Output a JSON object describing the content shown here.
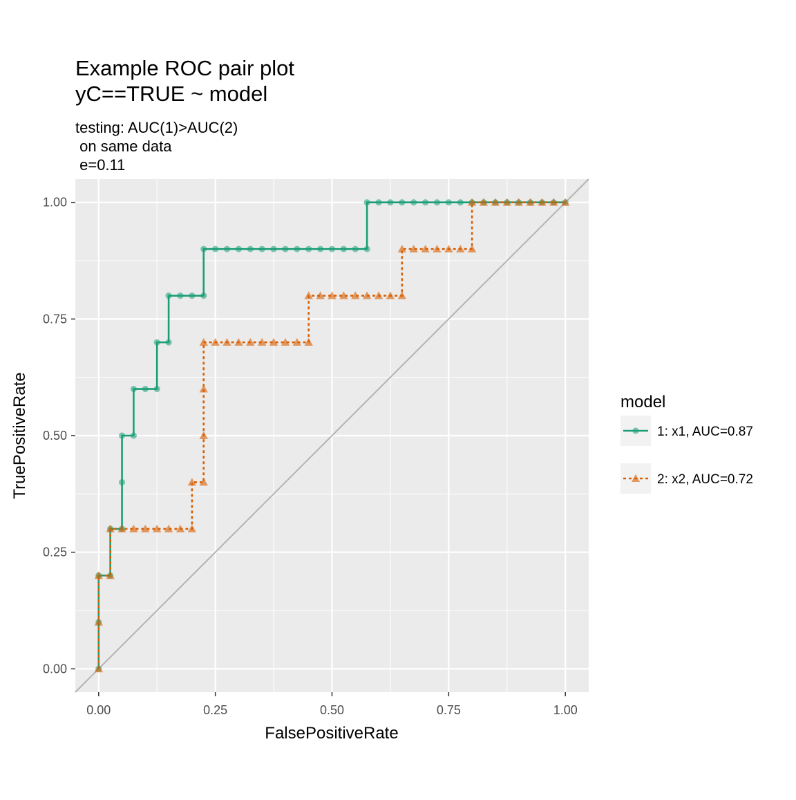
{
  "chart_data": {
    "type": "line",
    "title": [
      "Example ROC pair plot",
      "yC==TRUE ~ model"
    ],
    "subtitle": [
      "testing: AUC(1)>AUC(2)",
      " on same data",
      " e=0.11"
    ],
    "xlabel": "FalsePositiveRate",
    "ylabel": "TruePositiveRate",
    "xlim": [
      -0.05,
      1.05
    ],
    "ylim": [
      -0.05,
      1.05
    ],
    "xticks": [
      0,
      0.25,
      0.5,
      0.75,
      1
    ],
    "yticks": [
      0,
      0.25,
      0.5,
      0.75,
      1
    ],
    "xtick_labels": [
      "0.00",
      "0.25",
      "0.50",
      "0.75",
      "1.00"
    ],
    "ytick_labels": [
      "0.00",
      "0.25",
      "0.50",
      "0.75",
      "1.00"
    ],
    "grid": true,
    "legend": {
      "title": "model",
      "position": "right"
    },
    "reference_line": {
      "from": [
        -0.05,
        -0.05
      ],
      "to": [
        1.05,
        1.05
      ],
      "color": "#b3b3b3"
    },
    "series": [
      {
        "name": "1: x1, AUC=0.87",
        "color": "#1b9e77",
        "linestyle": "solid",
        "marker": "circle",
        "points": [
          [
            0,
            0
          ],
          [
            0,
            0.1
          ],
          [
            0,
            0.2
          ],
          [
            0.025,
            0.2
          ],
          [
            0.025,
            0.3
          ],
          [
            0.05,
            0.3
          ],
          [
            0.05,
            0.4
          ],
          [
            0.05,
            0.5
          ],
          [
            0.075,
            0.5
          ],
          [
            0.075,
            0.6
          ],
          [
            0.1,
            0.6
          ],
          [
            0.125,
            0.6
          ],
          [
            0.125,
            0.7
          ],
          [
            0.15,
            0.7
          ],
          [
            0.15,
            0.8
          ],
          [
            0.175,
            0.8
          ],
          [
            0.2,
            0.8
          ],
          [
            0.225,
            0.8
          ],
          [
            0.225,
            0.9
          ],
          [
            0.25,
            0.9
          ],
          [
            0.275,
            0.9
          ],
          [
            0.3,
            0.9
          ],
          [
            0.325,
            0.9
          ],
          [
            0.35,
            0.9
          ],
          [
            0.375,
            0.9
          ],
          [
            0.4,
            0.9
          ],
          [
            0.425,
            0.9
          ],
          [
            0.45,
            0.9
          ],
          [
            0.475,
            0.9
          ],
          [
            0.5,
            0.9
          ],
          [
            0.525,
            0.9
          ],
          [
            0.55,
            0.9
          ],
          [
            0.575,
            0.9
          ],
          [
            0.575,
            1
          ],
          [
            0.6,
            1
          ],
          [
            0.625,
            1
          ],
          [
            0.65,
            1
          ],
          [
            0.675,
            1
          ],
          [
            0.7,
            1
          ],
          [
            0.725,
            1
          ],
          [
            0.75,
            1
          ],
          [
            0.775,
            1
          ],
          [
            0.8,
            1
          ],
          [
            0.825,
            1
          ],
          [
            0.85,
            1
          ],
          [
            0.875,
            1
          ],
          [
            0.9,
            1
          ],
          [
            0.925,
            1
          ],
          [
            0.95,
            1
          ],
          [
            0.975,
            1
          ],
          [
            1,
            1
          ]
        ]
      },
      {
        "name": "2: x2, AUC=0.72",
        "color": "#d95f02",
        "linestyle": "dashed",
        "marker": "triangle",
        "points": [
          [
            0,
            0
          ],
          [
            0,
            0.1
          ],
          [
            0,
            0.2
          ],
          [
            0.025,
            0.2
          ],
          [
            0.025,
            0.3
          ],
          [
            0.05,
            0.3
          ],
          [
            0.075,
            0.3
          ],
          [
            0.1,
            0.3
          ],
          [
            0.125,
            0.3
          ],
          [
            0.15,
            0.3
          ],
          [
            0.175,
            0.3
          ],
          [
            0.2,
            0.3
          ],
          [
            0.2,
            0.4
          ],
          [
            0.225,
            0.4
          ],
          [
            0.225,
            0.5
          ],
          [
            0.225,
            0.6
          ],
          [
            0.225,
            0.7
          ],
          [
            0.25,
            0.7
          ],
          [
            0.275,
            0.7
          ],
          [
            0.3,
            0.7
          ],
          [
            0.325,
            0.7
          ],
          [
            0.35,
            0.7
          ],
          [
            0.375,
            0.7
          ],
          [
            0.4,
            0.7
          ],
          [
            0.425,
            0.7
          ],
          [
            0.45,
            0.7
          ],
          [
            0.45,
            0.8
          ],
          [
            0.475,
            0.8
          ],
          [
            0.5,
            0.8
          ],
          [
            0.525,
            0.8
          ],
          [
            0.55,
            0.8
          ],
          [
            0.575,
            0.8
          ],
          [
            0.6,
            0.8
          ],
          [
            0.625,
            0.8
          ],
          [
            0.65,
            0.8
          ],
          [
            0.65,
            0.9
          ],
          [
            0.675,
            0.9
          ],
          [
            0.7,
            0.9
          ],
          [
            0.725,
            0.9
          ],
          [
            0.75,
            0.9
          ],
          [
            0.775,
            0.9
          ],
          [
            0.8,
            0.9
          ],
          [
            0.8,
            1
          ],
          [
            0.825,
            1
          ],
          [
            0.85,
            1
          ],
          [
            0.875,
            1
          ],
          [
            0.9,
            1
          ],
          [
            0.925,
            1
          ],
          [
            0.95,
            1
          ],
          [
            0.975,
            1
          ],
          [
            1,
            1
          ]
        ]
      }
    ]
  }
}
